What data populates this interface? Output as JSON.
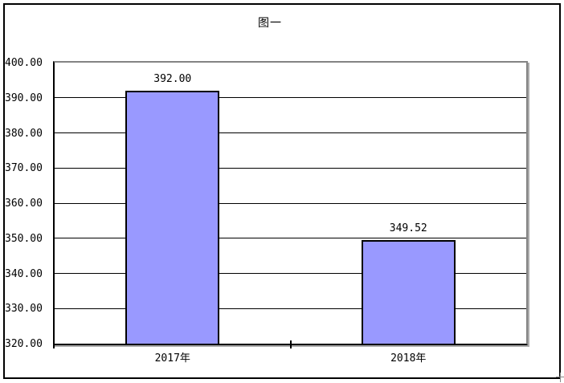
{
  "chart_data": {
    "type": "bar",
    "title": "图一",
    "categories": [
      "2017年",
      "2018年"
    ],
    "values": [
      392.0,
      349.52
    ],
    "value_labels": [
      "392.00",
      "349.52"
    ],
    "series_count": 1,
    "xlabel": "",
    "ylabel": "",
    "y_axis": {
      "min": 320,
      "max": 400,
      "step": 10,
      "tick_labels": [
        "320.00",
        "330.00",
        "340.00",
        "350.00",
        "360.00",
        "370.00",
        "380.00",
        "390.00",
        "400.00"
      ]
    },
    "grid": true,
    "legend": "none",
    "colors": {
      "bar_fill": "#9999FF",
      "bar_border": "#000000",
      "gridline": "#000000",
      "plot_border": "#848484",
      "axis": "#000000",
      "frame_border": "#000000",
      "background": "#FFFFFF"
    }
  }
}
